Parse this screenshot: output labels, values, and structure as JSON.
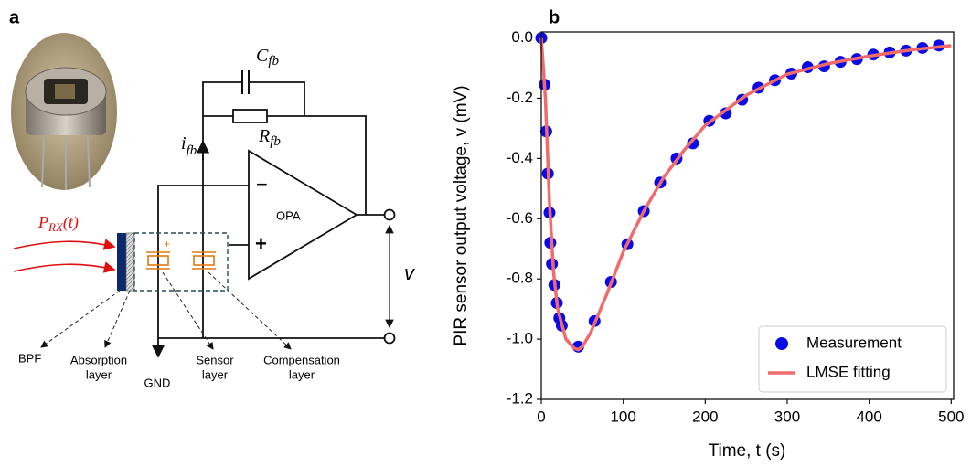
{
  "diagram": {
    "panel_label": "a",
    "cfb": {
      "base": "C",
      "sub": "fb"
    },
    "rfb": {
      "base": "R",
      "sub": "fb"
    },
    "ifb": {
      "base": "i",
      "sub": "fb"
    },
    "minus": "−",
    "plus": "+",
    "opa": "OPA",
    "v": "v",
    "sensor_plus": "+",
    "prx": {
      "base": "P",
      "sub": "RX",
      "suffix": "(t)"
    },
    "bpf": "BPF",
    "absorption": [
      "Absorption",
      "layer"
    ],
    "gnd": "GND",
    "sensor": [
      "Sensor",
      "layer"
    ],
    "compensation": [
      "Compensation",
      "layer"
    ]
  },
  "chart_data": {
    "type": "scatter",
    "panel_label": "b",
    "xlabel": "Time, t (s)",
    "ylabel": "PIR sensor output voltage, v (mV)",
    "xlim": [
      0,
      503
    ],
    "ylim": [
      -1.2,
      0.02
    ],
    "xticks": [
      0,
      100,
      200,
      300,
      400,
      500
    ],
    "yticks": [
      {
        "value": 0,
        "label": "0.0"
      },
      -0.2,
      -0.4,
      -0.6,
      -0.8,
      {
        "value": -1,
        "label": "-1.0"
      },
      -1.2
    ],
    "legend": "lower right",
    "series": [
      {
        "name": "Measurement",
        "type": "scatter",
        "color": "#0a0ae6",
        "x": [
          0,
          4,
          6,
          8,
          10,
          11,
          13,
          16,
          19,
          22,
          25,
          45,
          65,
          85,
          105,
          125,
          145,
          165,
          185,
          205,
          225,
          245,
          265,
          285,
          305,
          325,
          345,
          365,
          385,
          405,
          425,
          445,
          465,
          485
        ],
        "values": [
          0,
          -0.155,
          -0.31,
          -0.45,
          -0.58,
          -0.68,
          -0.75,
          -0.82,
          -0.88,
          -0.93,
          -0.955,
          -1.025,
          -0.94,
          -0.81,
          -0.685,
          -0.575,
          -0.48,
          -0.4,
          -0.35,
          -0.275,
          -0.25,
          -0.205,
          -0.165,
          -0.14,
          -0.118,
          -0.097,
          -0.094,
          -0.079,
          -0.07,
          -0.055,
          -0.048,
          -0.042,
          -0.033,
          -0.025
        ]
      },
      {
        "name": "LMSE fitting",
        "type": "line",
        "color": "#f26b6b",
        "x": [
          0,
          5,
          10,
          15,
          20,
          30,
          40,
          45,
          50,
          60,
          80,
          100,
          125,
          150,
          175,
          200,
          250,
          300,
          350,
          400,
          450,
          500
        ],
        "values": [
          0,
          -0.2,
          -0.55,
          -0.78,
          -0.9,
          -1.0,
          -1.03,
          -1.035,
          -1.025,
          -0.98,
          -0.85,
          -0.71,
          -0.575,
          -0.46,
          -0.37,
          -0.29,
          -0.19,
          -0.12,
          -0.085,
          -0.06,
          -0.04,
          -0.025
        ]
      }
    ]
  }
}
